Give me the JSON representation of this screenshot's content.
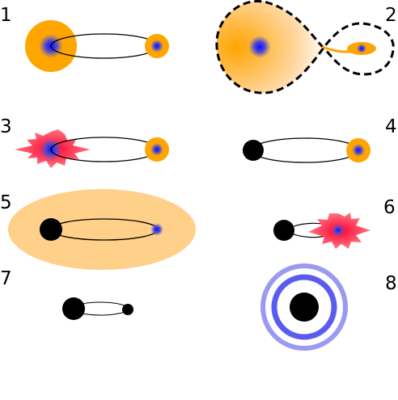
{
  "panels": [
    {
      "id": "1",
      "label": "1"
    },
    {
      "id": "2",
      "label": "2"
    },
    {
      "id": "3",
      "label": "3"
    },
    {
      "id": "4",
      "label": "4"
    },
    {
      "id": "5",
      "label": "5"
    },
    {
      "id": "6",
      "label": "6"
    },
    {
      "id": "7",
      "label": "7"
    },
    {
      "id": "8",
      "label": "8"
    }
  ],
  "colors": {
    "envelope": "#ffa500",
    "envelope_light": "#ffd08a",
    "core": "#2222dd",
    "compact": "#000000",
    "flare": "#ff3344",
    "ring_outer": "#9a9af2",
    "ring_inner": "#5b5bef"
  }
}
